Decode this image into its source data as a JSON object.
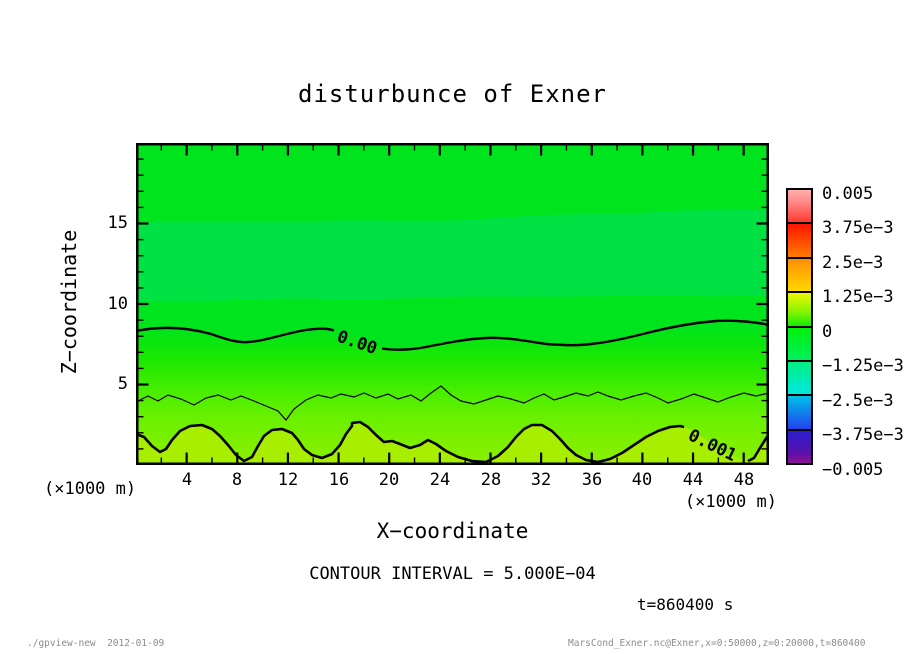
{
  "title": "disturbunce of Exner",
  "chart_data": {
    "type": "heatmap",
    "subtype": "filled-contour-with-lines",
    "title": "disturbunce of Exner",
    "xlabel": "X−coordinate",
    "ylabel": "Z−coordinate",
    "x_unit_label": "(×1000 m)",
    "y_unit_label": "(×1000 m)",
    "xlim": [
      0,
      50
    ],
    "ylim": [
      0,
      20
    ],
    "x_minor_step": 2,
    "x_major_step": 4,
    "y_minor_step": 1,
    "y_major_step": 5,
    "grid": false,
    "x_tick_labels": [
      "4",
      "8",
      "12",
      "16",
      "20",
      "24",
      "28",
      "32",
      "36",
      "40",
      "44",
      "48"
    ],
    "y_tick_labels": [
      "5",
      "10",
      "15"
    ],
    "contour_interval": 0.0005,
    "contour_line_labels": {
      "zero": "0.00",
      "pos1": "0.001"
    },
    "zero_contour_height_z": 8.3,
    "thin_contour_height_z": 4.0,
    "pos1_contour_height_z": 1.8,
    "approx_vertical_profile": [
      [
        0,
        0.0012
      ],
      [
        1.8,
        0.001
      ],
      [
        4.0,
        0.0005
      ],
      [
        8.3,
        0.0
      ],
      [
        10.5,
        -0.0002
      ],
      [
        14,
        -0.0003
      ],
      [
        17,
        -0.0001
      ],
      [
        20,
        -0.0001
      ]
    ],
    "colorbar": {
      "position": "right",
      "labels": [
        "0.005",
        "3.75e−3",
        "2.5e−3",
        "1.25e−3",
        "0",
        "−1.25e−3",
        "−2.5e−3",
        "−3.75e−3",
        "−0.005"
      ],
      "level_values": [
        0.005,
        0.00375,
        0.0025,
        0.00125,
        0,
        -0.00125,
        -0.0025,
        -0.00375,
        -0.005
      ],
      "segments": [
        {
          "from": 0.005,
          "to": 0.00375,
          "css": "linear-gradient(180deg,#ffb0b0 0%,#ff8080 45%,#ff3a30 100%)"
        },
        {
          "from": 0.00375,
          "to": 0.0025,
          "css": "linear-gradient(180deg,#ff1400 0%,#ff7c00 100%)"
        },
        {
          "from": 0.0025,
          "to": 0.00125,
          "css": "linear-gradient(180deg,#ff8e00 0%,#ffd800 100%)"
        },
        {
          "from": 0.00125,
          "to": 0.0,
          "css": "linear-gradient(180deg,#eef800 0%,#8cf200 55%,#12ee00 100%)"
        },
        {
          "from": 0.0,
          "to": -0.00125,
          "css": "linear-gradient(180deg,#00f20c 0%,#00ef5e 100%)"
        },
        {
          "from": -0.00125,
          "to": -0.0025,
          "css": "linear-gradient(180deg,#00f084 0%,#00e8e0 100%)"
        },
        {
          "from": -0.0025,
          "to": -0.00375,
          "css": "linear-gradient(180deg,#00c0e8 0%,#2242ee 100%)"
        },
        {
          "from": -0.00375,
          "to": -0.005,
          "css": "linear-gradient(180deg,#2a1ed0 0%,#5c10a8 70%,#8c1494 100%)"
        }
      ]
    }
  },
  "annotations": {
    "contour_interval_text": "CONTOUR INTERVAL = 5.000E−04",
    "time_text": "t=860400 s"
  },
  "footer": {
    "left": "./gpview-new  2012-01-09",
    "right": "MarsCond_Exner.nc@Exner,x=0:50000,z=0:20000,t=860400"
  },
  "colors": {
    "background": "#ffffff",
    "frame": "#000000",
    "tone_top_green": "#00e41e",
    "tone_band_emerald": "#00e243",
    "tone_mid_green": "#46ee00",
    "tone_bottom_yellow_green": "#a7ee00",
    "footer_gray": "#8c8c8c"
  }
}
